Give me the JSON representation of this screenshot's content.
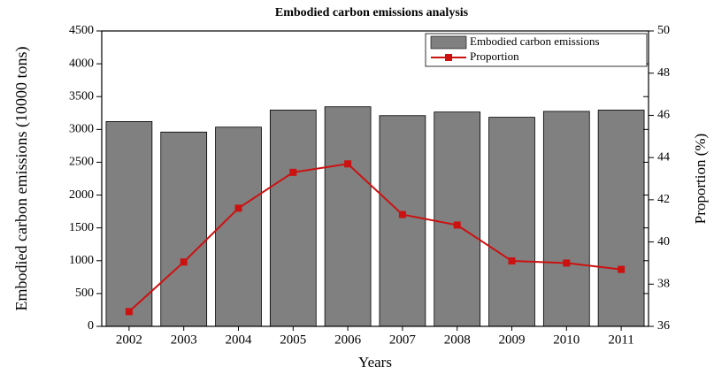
{
  "chart_data": {
    "type": "bar",
    "title": "Embodied carbon emissions analysis",
    "x_label": "Years",
    "y_label": "Embodied carbon emissions (10000 tons)",
    "y2_label": "Proportion (%)",
    "categories": [
      "2002",
      "2003",
      "2004",
      "2005",
      "2006",
      "2007",
      "2008",
      "2009",
      "2010",
      "2011"
    ],
    "series": [
      {
        "name": "Embodied carbon emissions",
        "type": "bar",
        "color": "#808080",
        "values": [
          3120,
          2960,
          3035,
          3295,
          3345,
          3210,
          3265,
          3185,
          3275,
          3295
        ]
      },
      {
        "name": "Proportion",
        "type": "line",
        "axis": "y2",
        "color": "#cc1111",
        "values": [
          36.7,
          39.05,
          41.6,
          43.3,
          43.7,
          41.3,
          40.8,
          39.1,
          39.0,
          38.7
        ]
      }
    ],
    "ylim": [
      0,
      4500
    ],
    "yticks": [
      0,
      500,
      1000,
      1500,
      2000,
      2500,
      3000,
      3500,
      4000,
      4500
    ],
    "y2lim": [
      36,
      50
    ],
    "y2ticks": [
      36,
      38,
      40,
      42,
      44,
      46,
      48,
      50
    ],
    "legend": "top-right"
  }
}
